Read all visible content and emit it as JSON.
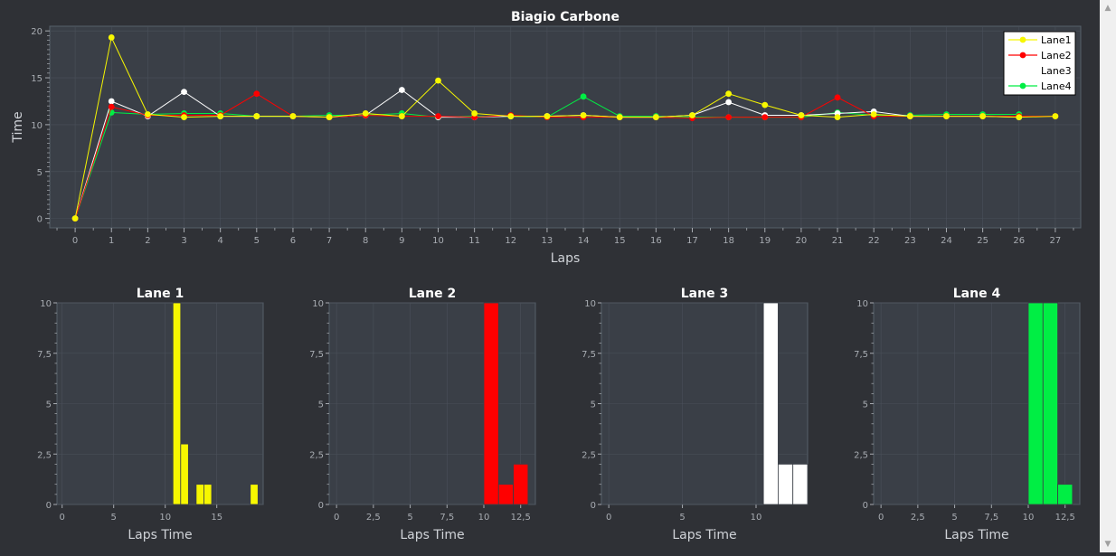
{
  "window": {
    "scroll_up_glyph": "▲",
    "scroll_down_glyph": "▼"
  },
  "colors": {
    "background": "#2f3136",
    "plot_area": "#3a3f47",
    "grid": "#4a505a",
    "axis_text": "#a8acb2",
    "title_text": "#ffffff",
    "lane1": "#f7f700",
    "lane2": "#ff0000",
    "lane3": "#ffffff",
    "lane4": "#00ee44"
  },
  "chart_data": [
    {
      "type": "line",
      "title": "Biagio Carbone",
      "xlabel": "Laps",
      "ylabel": "Time",
      "xlim": [
        -0.7,
        27.7
      ],
      "ylim": [
        -1,
        20.5
      ],
      "x_ticks": [
        0,
        1,
        2,
        3,
        4,
        5,
        6,
        7,
        8,
        9,
        10,
        11,
        12,
        13,
        14,
        15,
        16,
        17,
        18,
        19,
        20,
        21,
        22,
        23,
        24,
        25,
        26,
        27
      ],
      "y_ticks": [
        0,
        5,
        10,
        15,
        20
      ],
      "grid": true,
      "legend_position": "top-right",
      "x": [
        0,
        1,
        2,
        3,
        4,
        5,
        6,
        7,
        8,
        9,
        10,
        11,
        12,
        13,
        14,
        15,
        16,
        17,
        18,
        19,
        20,
        21,
        22,
        23,
        24,
        25,
        26,
        27
      ],
      "series": [
        {
          "name": "Lane1",
          "color": "#f7f700",
          "line": true,
          "markers": true,
          "values": [
            0,
            19.3,
            11.1,
            10.8,
            10.9,
            10.9,
            10.9,
            10.8,
            11.2,
            10.9,
            14.7,
            11.2,
            10.9,
            10.9,
            11.0,
            10.8,
            10.8,
            11.0,
            13.3,
            12.1,
            11.0,
            10.8,
            11.1,
            10.9,
            10.9,
            10.9,
            10.8,
            10.9
          ]
        },
        {
          "name": "Lane2",
          "color": "#ff0000",
          "line": true,
          "markers": true,
          "values": [
            0,
            11.9,
            11.0,
            11.0,
            11.0,
            13.3,
            10.9,
            10.8,
            11.0,
            10.9,
            10.9,
            10.8,
            11.0,
            10.8,
            10.8,
            10.8,
            10.8,
            10.7,
            10.8,
            10.8,
            10.8,
            12.9,
            10.9,
            10.9,
            10.9,
            10.9,
            10.9,
            10.9
          ]
        },
        {
          "name": "Lane3",
          "color": "#ffffff",
          "line": true,
          "markers": true,
          "values": [
            0,
            12.5,
            10.9,
            13.5,
            10.9,
            10.9,
            10.9,
            10.8,
            11.0,
            13.7,
            10.8,
            10.8,
            10.9,
            10.9,
            11.0,
            10.8,
            10.8,
            11.0,
            12.4,
            11.0,
            11.0,
            11.2,
            11.4,
            10.9,
            10.9,
            10.9,
            10.8,
            null
          ]
        },
        {
          "name": "Lane4",
          "color": "#00ee44",
          "line": true,
          "markers": true,
          "values": [
            0,
            11.3,
            11.1,
            11.2,
            11.2,
            10.9,
            10.9,
            11.0,
            11.0,
            11.2,
            10.8,
            10.9,
            10.9,
            10.8,
            13.0,
            10.9,
            10.9,
            10.8,
            10.8,
            10.8,
            10.8,
            11.3,
            11.0,
            11.0,
            11.1,
            11.1,
            11.1,
            null
          ]
        }
      ]
    },
    {
      "type": "bar",
      "title": "Lane 1",
      "xlabel": "Laps Time",
      "ylabel": "",
      "color": "#f7f700",
      "xlim": [
        -0.5,
        19.5
      ],
      "ylim": [
        0,
        10
      ],
      "x_ticks": [
        0,
        5,
        10,
        15
      ],
      "x_tick_labels": [
        "0",
        "5",
        "10",
        "15"
      ],
      "y_ticks": [
        0,
        2.5,
        5,
        7.5,
        10
      ],
      "y_tick_labels": [
        "0",
        "2,5",
        "5",
        "7,5",
        "10"
      ],
      "bin_width": 0.75,
      "bins": [
        10.75,
        11.5,
        13.0,
        13.75,
        18.25
      ],
      "values": [
        10,
        3,
        1,
        1,
        1
      ]
    },
    {
      "type": "bar",
      "title": "Lane 2",
      "xlabel": "Laps Time",
      "ylabel": "",
      "color": "#ff0000",
      "xlim": [
        -0.5,
        13.5
      ],
      "ylim": [
        0,
        10
      ],
      "x_ticks": [
        0,
        2.5,
        5,
        7.5,
        10,
        12.5
      ],
      "x_tick_labels": [
        "0",
        "2,5",
        "5",
        "7,5",
        "10",
        "12,5"
      ],
      "y_ticks": [
        0,
        2.5,
        5,
        7.5,
        10
      ],
      "y_tick_labels": [
        "0",
        "2,5",
        "5",
        "7,5",
        "10"
      ],
      "bin_width": 1.0,
      "bins": [
        10.0,
        11.0,
        12.0
      ],
      "values": [
        10,
        1,
        2
      ]
    },
    {
      "type": "bar",
      "title": "Lane 3",
      "xlabel": "Laps Time",
      "ylabel": "",
      "color": "#ffffff",
      "xlim": [
        -0.5,
        13.5
      ],
      "ylim": [
        0,
        10
      ],
      "x_ticks": [
        0,
        5,
        10
      ],
      "x_tick_labels": [
        "0",
        "5",
        "10"
      ],
      "y_ticks": [
        0,
        2.5,
        5,
        7.5,
        10
      ],
      "y_tick_labels": [
        "0",
        "2,5",
        "5",
        "7,5",
        "10"
      ],
      "bin_width": 1.0,
      "bins": [
        10.5,
        11.5,
        12.5
      ],
      "values": [
        10,
        2,
        2
      ]
    },
    {
      "type": "bar",
      "title": "Lane 4",
      "xlabel": "Laps Time",
      "ylabel": "",
      "color": "#00ee44",
      "xlim": [
        -0.5,
        13.5
      ],
      "ylim": [
        0,
        10
      ],
      "x_ticks": [
        0,
        2.5,
        5,
        7.5,
        10,
        12.5
      ],
      "x_tick_labels": [
        "0",
        "2,5",
        "5",
        "7,5",
        "10",
        "12,5"
      ],
      "y_ticks": [
        0,
        2.5,
        5,
        7.5,
        10
      ],
      "y_tick_labels": [
        "0",
        "2,5",
        "5",
        "7,5",
        "10"
      ],
      "bin_width": 1.0,
      "bins": [
        10.0,
        11.0,
        12.0
      ],
      "values": [
        10,
        10,
        1
      ]
    }
  ]
}
